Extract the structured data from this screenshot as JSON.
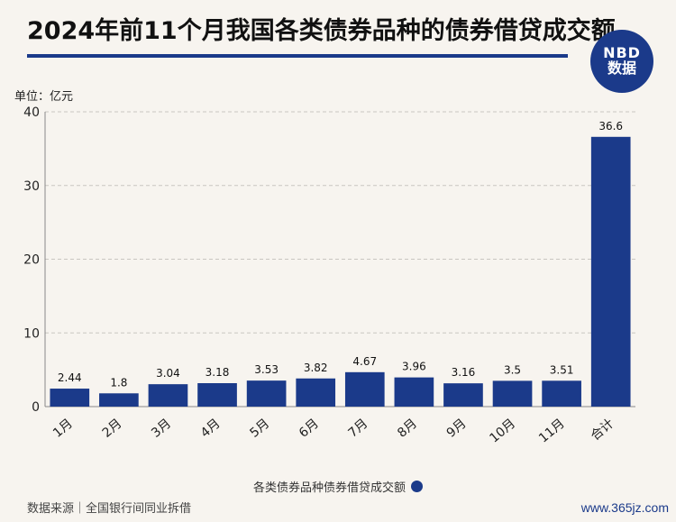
{
  "title": "2024年前11个月我国各类债券品种的债券借贷成交额",
  "logo": {
    "line1": "NBD",
    "line2": "数据"
  },
  "unit_label": "单位：亿元",
  "source_label": "数据来源｜全国银行间同业拆借",
  "site_label": "www.365jz.com",
  "colors": {
    "bar": "#1b3a8a",
    "title_rule": "#1b3a8a"
  },
  "chart_data": {
    "type": "bar",
    "title": "2024年前11个月我国各类债券品种的债券借贷成交额",
    "categories": [
      "1月",
      "2月",
      "3月",
      "4月",
      "5月",
      "6月",
      "7月",
      "8月",
      "9月",
      "10月",
      "11月",
      "合计"
    ],
    "values": [
      2.44,
      1.8,
      3.04,
      3.18,
      3.53,
      3.82,
      4.67,
      3.96,
      3.16,
      3.5,
      3.51,
      36.6
    ],
    "data_labels": [
      "2.44",
      "1.8",
      "3.04",
      "3.18",
      "3.53",
      "3.82",
      "4.67",
      "3.96",
      "3.16",
      "3.5",
      "3.51",
      "36.6"
    ],
    "series": [
      {
        "name": "各类债券品种债券借贷成交额"
      }
    ],
    "yticks": [
      "0",
      "10",
      "20",
      "30",
      "40"
    ],
    "ylim": [
      0,
      40
    ],
    "grid": true,
    "legend": "bottom-center"
  }
}
